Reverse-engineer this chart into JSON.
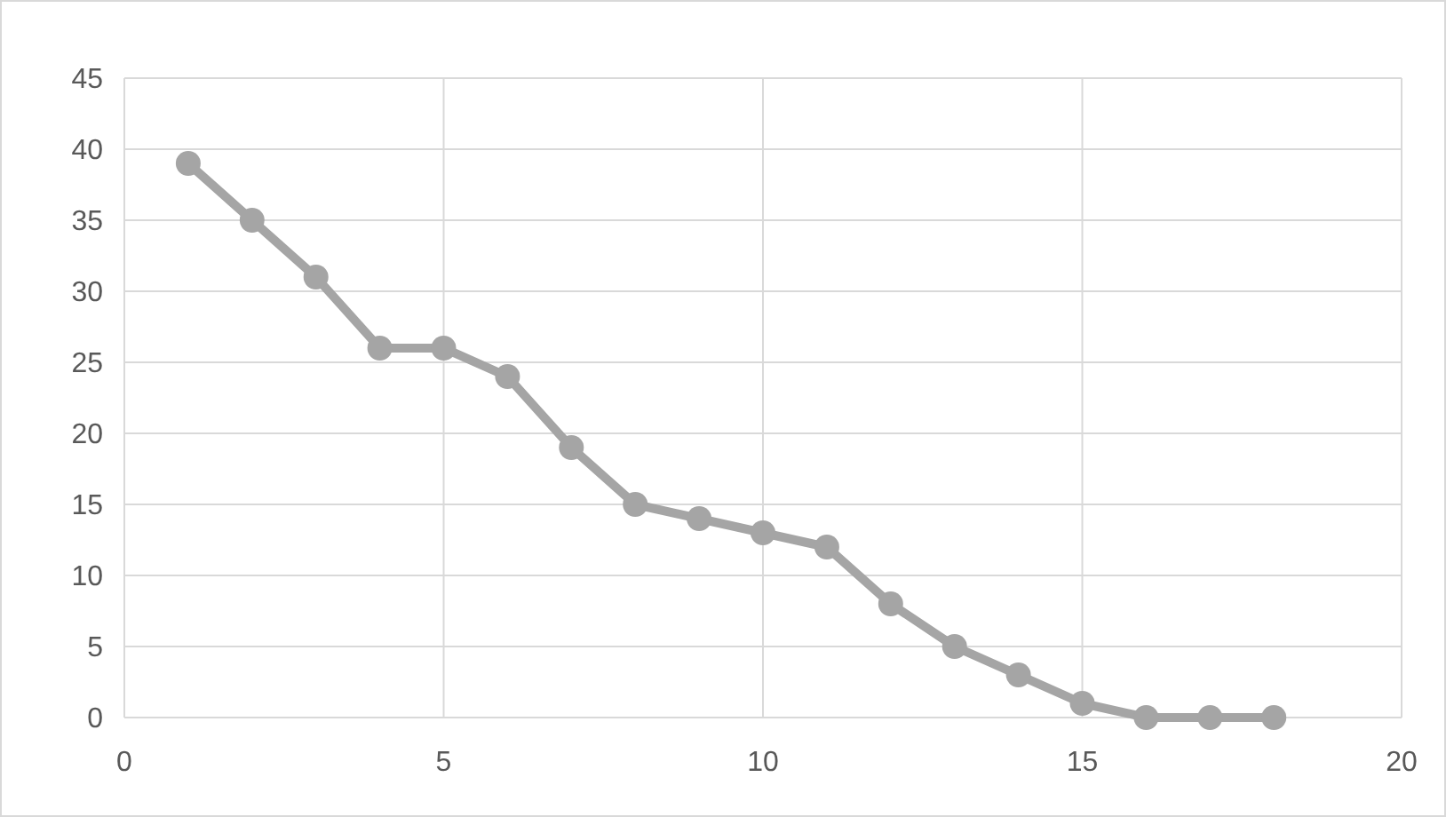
{
  "chart_data": {
    "type": "line",
    "x": [
      1,
      2,
      3,
      4,
      5,
      6,
      7,
      8,
      9,
      10,
      11,
      12,
      13,
      14,
      15,
      16,
      17,
      18
    ],
    "series": [
      {
        "color": "#a5a5a5",
        "values": [
          39,
          35,
          31,
          26,
          26,
          24,
          19,
          15,
          14,
          13,
          12,
          8,
          5,
          3,
          1,
          0,
          0,
          0
        ]
      }
    ],
    "xlim": [
      0,
      20
    ],
    "xticks": [
      0,
      5,
      10,
      15,
      20
    ],
    "ylim": [
      0,
      45
    ],
    "yticks": [
      0,
      5,
      10,
      15,
      20,
      25,
      30,
      35,
      40,
      45
    ],
    "grid": true,
    "marker": "circle",
    "line_style": "solid"
  }
}
